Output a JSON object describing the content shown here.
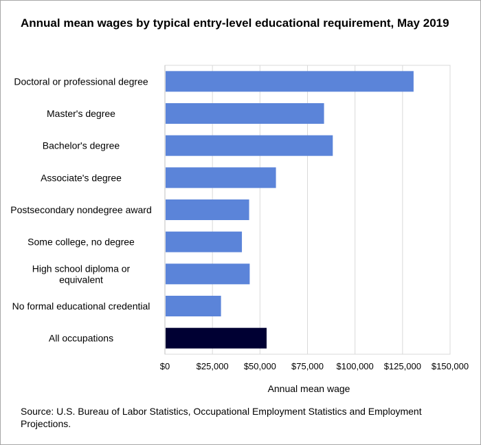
{
  "title": "Annual mean wages by typical entry-level educational requirement, May 2019",
  "source": "Source: U.S. Bureau of Labor Statistics, Occupational Employment Statistics and Employment Projections.",
  "colors": {
    "bar": "#5b84d9",
    "highlight": "#000033",
    "grid": "#d9d9d9",
    "axis": "#bfbfbf"
  },
  "chart_data": {
    "type": "bar",
    "orientation": "horizontal",
    "title": "Annual mean wages by typical entry-level educational requirement, May 2019",
    "xlabel": "Annual mean wage",
    "ylabel": "",
    "xlim": [
      0,
      150000
    ],
    "xticks": [
      0,
      25000,
      50000,
      75000,
      100000,
      125000,
      150000
    ],
    "xtick_labels": [
      "$0",
      "$25,000",
      "$50,000",
      "$75,000",
      "$100,000",
      "$125,000",
      "$150,000"
    ],
    "grid": true,
    "legend": "none",
    "categories": [
      "Doctoral or professional degree",
      "Master's degree",
      "Bachelor's degree",
      "Associate's degree",
      "Postsecondary nondegree award",
      "Some college, no degree",
      "High school diploma or equivalent",
      "No formal educational credential",
      "All occupations"
    ],
    "category_lines": [
      [
        "Doctoral or professional degree"
      ],
      [
        "Master's degree"
      ],
      [
        "Bachelor's degree"
      ],
      [
        "Associate's degree"
      ],
      [
        "Postsecondary nondegree award"
      ],
      [
        "Some college, no degree"
      ],
      [
        "High school diploma or",
        "equivalent"
      ],
      [
        "No formal educational credential"
      ],
      [
        "All occupations"
      ]
    ],
    "values": [
      130800,
      83700,
      88300,
      58400,
      44300,
      40500,
      44600,
      29500,
      53490
    ],
    "highlight_index": 8
  }
}
